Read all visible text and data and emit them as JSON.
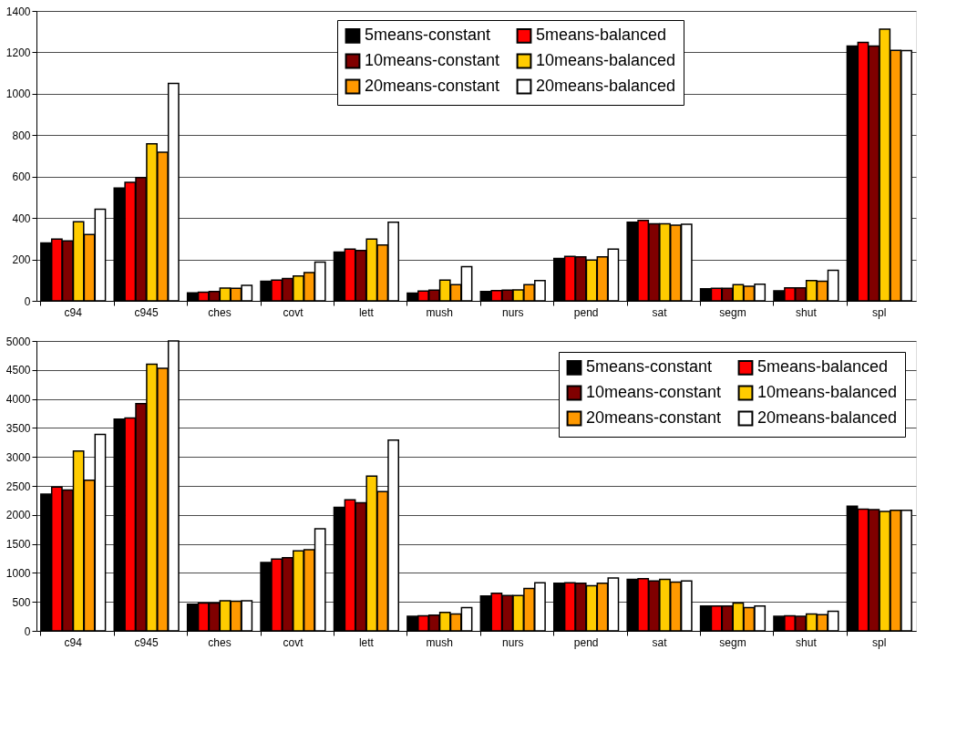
{
  "chart_data": [
    {
      "type": "bar",
      "categories": [
        "c94",
        "c945",
        "ches",
        "covt",
        "lett",
        "mush",
        "nurs",
        "pend",
        "sat",
        "segm",
        "shut",
        "spl"
      ],
      "ylim": [
        0,
        1400
      ],
      "yticks": [
        0,
        200,
        400,
        600,
        800,
        1000,
        1200,
        1400
      ],
      "grid": "y",
      "legend": "top right",
      "series": [
        {
          "name": "5means-constant",
          "color": "#000000",
          "values": [
            280,
            545,
            38,
            95,
            235,
            37,
            45,
            205,
            380,
            58,
            48,
            1230
          ]
        },
        {
          "name": "5means-balanced",
          "color": "#ff0000",
          "values": [
            298,
            572,
            42,
            100,
            250,
            47,
            50,
            215,
            388,
            60,
            63,
            1248
          ]
        },
        {
          "name": "10means-constant",
          "color": "#800000",
          "values": [
            290,
            595,
            45,
            108,
            243,
            52,
            52,
            212,
            372,
            60,
            63,
            1230
          ]
        },
        {
          "name": "10means-balanced",
          "color": "#ffcc00",
          "values": [
            382,
            758,
            62,
            120,
            298,
            100,
            53,
            197,
            372,
            78,
            98,
            1312
          ]
        },
        {
          "name": "20means-constant",
          "color": "#ff9900",
          "values": [
            320,
            718,
            60,
            137,
            270,
            78,
            78,
            212,
            365,
            70,
            95,
            1210
          ]
        },
        {
          "name": "20means-balanced",
          "color": "#ffffff",
          "values": [
            442,
            1050,
            75,
            187,
            380,
            165,
            98,
            250,
            370,
            80,
            148,
            1208
          ]
        }
      ]
    },
    {
      "type": "bar",
      "categories": [
        "c94",
        "c945",
        "ches",
        "covt",
        "lett",
        "mush",
        "nurs",
        "pend",
        "sat",
        "segm",
        "shut",
        "spl"
      ],
      "ylim": [
        0,
        5000
      ],
      "yticks": [
        0,
        500,
        1000,
        1500,
        2000,
        2500,
        3000,
        3500,
        4000,
        4500,
        5000
      ],
      "grid": "y",
      "legend": "top right",
      "series": [
        {
          "name": "5means-constant",
          "color": "#000000",
          "values": [
            2360,
            3650,
            460,
            1180,
            2130,
            250,
            600,
            820,
            890,
            430,
            250,
            2150
          ]
        },
        {
          "name": "5means-balanced",
          "color": "#ff0000",
          "values": [
            2480,
            3670,
            480,
            1240,
            2260,
            260,
            650,
            830,
            900,
            430,
            260,
            2100
          ]
        },
        {
          "name": "10means-constant",
          "color": "#800000",
          "values": [
            2430,
            3920,
            480,
            1260,
            2210,
            270,
            610,
            820,
            860,
            430,
            250,
            2090
          ]
        },
        {
          "name": "10means-balanced",
          "color": "#ffcc00",
          "values": [
            3100,
            4600,
            520,
            1380,
            2670,
            320,
            610,
            780,
            890,
            480,
            290,
            2060
          ]
        },
        {
          "name": "20means-constant",
          "color": "#ff9900",
          "values": [
            2600,
            4530,
            510,
            1400,
            2400,
            290,
            730,
            820,
            840,
            400,
            280,
            2080
          ]
        },
        {
          "name": "20means-balanced",
          "color": "#ffffff",
          "values": [
            3390,
            5000,
            520,
            1760,
            3290,
            400,
            830,
            910,
            860,
            430,
            340,
            2080
          ]
        }
      ]
    }
  ]
}
